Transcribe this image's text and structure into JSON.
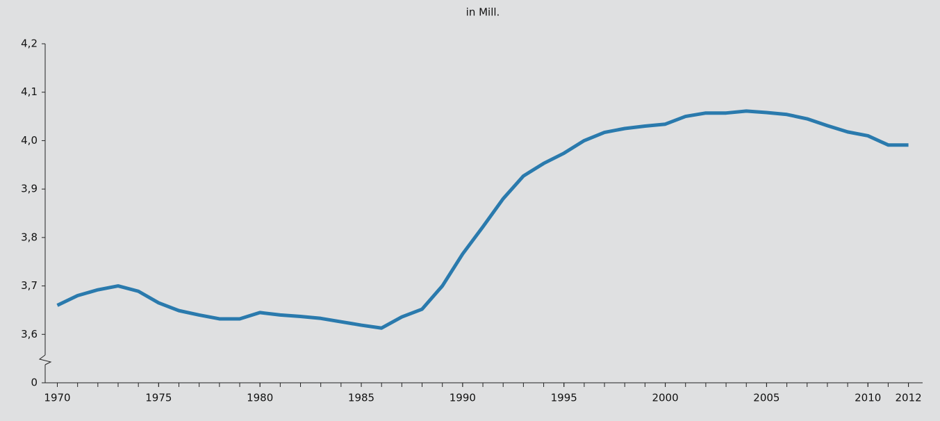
{
  "chart_data": {
    "type": "line",
    "title": "in Mill.",
    "x": [
      1970,
      1971,
      1972,
      1973,
      1974,
      1975,
      1976,
      1977,
      1978,
      1979,
      1980,
      1981,
      1982,
      1983,
      1984,
      1985,
      1986,
      1987,
      1988,
      1989,
      1990,
      1991,
      1992,
      1993,
      1994,
      1995,
      1996,
      1997,
      1998,
      1999,
      2000,
      2001,
      2002,
      2003,
      2004,
      2005,
      2006,
      2007,
      2008,
      2009,
      2010,
      2011,
      2012
    ],
    "series": [
      {
        "name": null,
        "color": "#2a7aad",
        "values": [
          3.66,
          3.68,
          3.692,
          3.7,
          3.689,
          3.665,
          3.649,
          3.64,
          3.632,
          3.632,
          3.645,
          3.64,
          3.637,
          3.633,
          3.626,
          3.619,
          3.613,
          3.636,
          3.652,
          3.7,
          3.766,
          3.822,
          3.88,
          3.927,
          3.953,
          3.974,
          4.0,
          4.017,
          4.025,
          4.03,
          4.034,
          4.05,
          4.057,
          4.057,
          4.061,
          4.058,
          4.054,
          4.045,
          4.031,
          4.018,
          4.01,
          3.991,
          3.991
        ]
      }
    ],
    "xlim": [
      1969.4,
      2012.7
    ],
    "xticks": [
      1970,
      1975,
      1980,
      1985,
      1990,
      1995,
      2000,
      2005,
      2010,
      2012
    ],
    "ylim": [
      0,
      4.2
    ],
    "axis_break": [
      0,
      3.6
    ],
    "yticks": [
      0,
      {
        "value": 3.6,
        "label": "3,6"
      },
      {
        "value": 3.7,
        "label": "3,7"
      },
      {
        "value": 3.8,
        "label": "3,8"
      },
      {
        "value": 3.9,
        "label": "3,9"
      },
      {
        "value": 4.0,
        "label": "4,0"
      },
      {
        "value": 4.1,
        "label": "4,1"
      },
      {
        "value": 4.2,
        "label": "4,2"
      }
    ],
    "grid": false
  }
}
